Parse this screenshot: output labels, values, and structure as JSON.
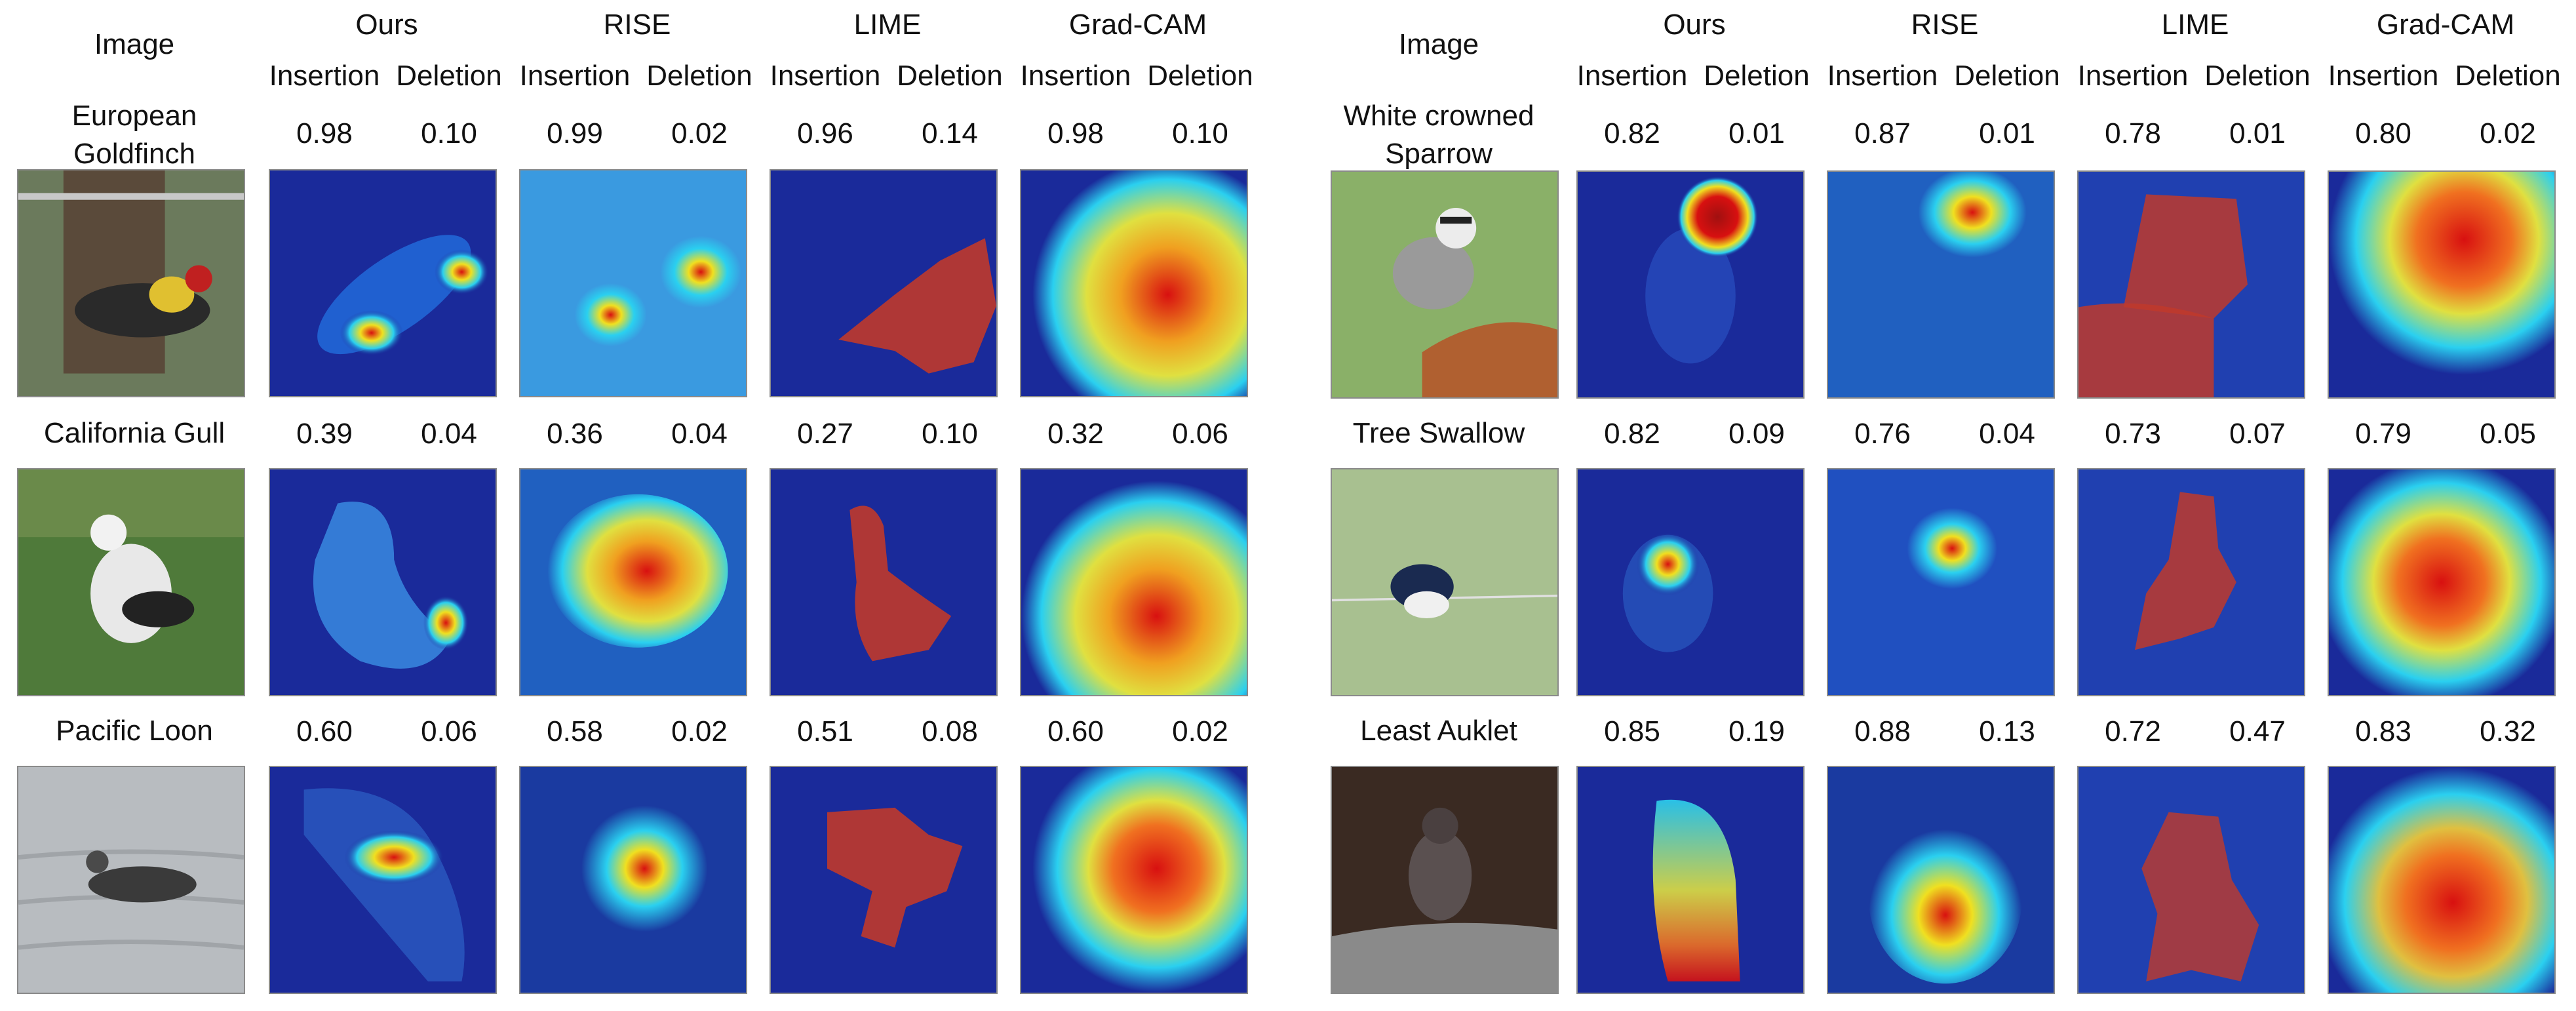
{
  "headers": {
    "image": "Image",
    "methods": [
      "Ours",
      "RISE",
      "LIME",
      "Grad-CAM"
    ],
    "insertion": "Insertion",
    "deletion": "Deletion"
  },
  "left": {
    "rows": [
      {
        "species": "European Goldfinch",
        "scores": [
          "0.98",
          "0.10",
          "0.99",
          "0.02",
          "0.96",
          "0.14",
          "0.98",
          "0.10"
        ]
      },
      {
        "species": "California Gull",
        "scores": [
          "0.39",
          "0.04",
          "0.36",
          "0.04",
          "0.27",
          "0.10",
          "0.32",
          "0.06"
        ]
      },
      {
        "species": "Pacific Loon",
        "scores": [
          "0.60",
          "0.06",
          "0.58",
          "0.02",
          "0.51",
          "0.08",
          "0.60",
          "0.02"
        ]
      }
    ]
  },
  "right": {
    "rows": [
      {
        "species": "White crowned Sparrow",
        "scores": [
          "0.82",
          "0.01",
          "0.87",
          "0.01",
          "0.78",
          "0.01",
          "0.80",
          "0.02"
        ]
      },
      {
        "species": "Tree Swallow",
        "scores": [
          "0.82",
          "0.09",
          "0.76",
          "0.04",
          "0.73",
          "0.07",
          "0.79",
          "0.05"
        ]
      },
      {
        "species": "Least Auklet",
        "scores": [
          "0.85",
          "0.19",
          "0.88",
          "0.13",
          "0.72",
          "0.47",
          "0.83",
          "0.32"
        ]
      }
    ]
  },
  "colors": {
    "heat_low": "#1a2a9a",
    "heat_mid": "#2ad0f0",
    "heat_warm": "#f0e020",
    "heat_high": "#d81010",
    "lime_mask": "#c0392b"
  }
}
